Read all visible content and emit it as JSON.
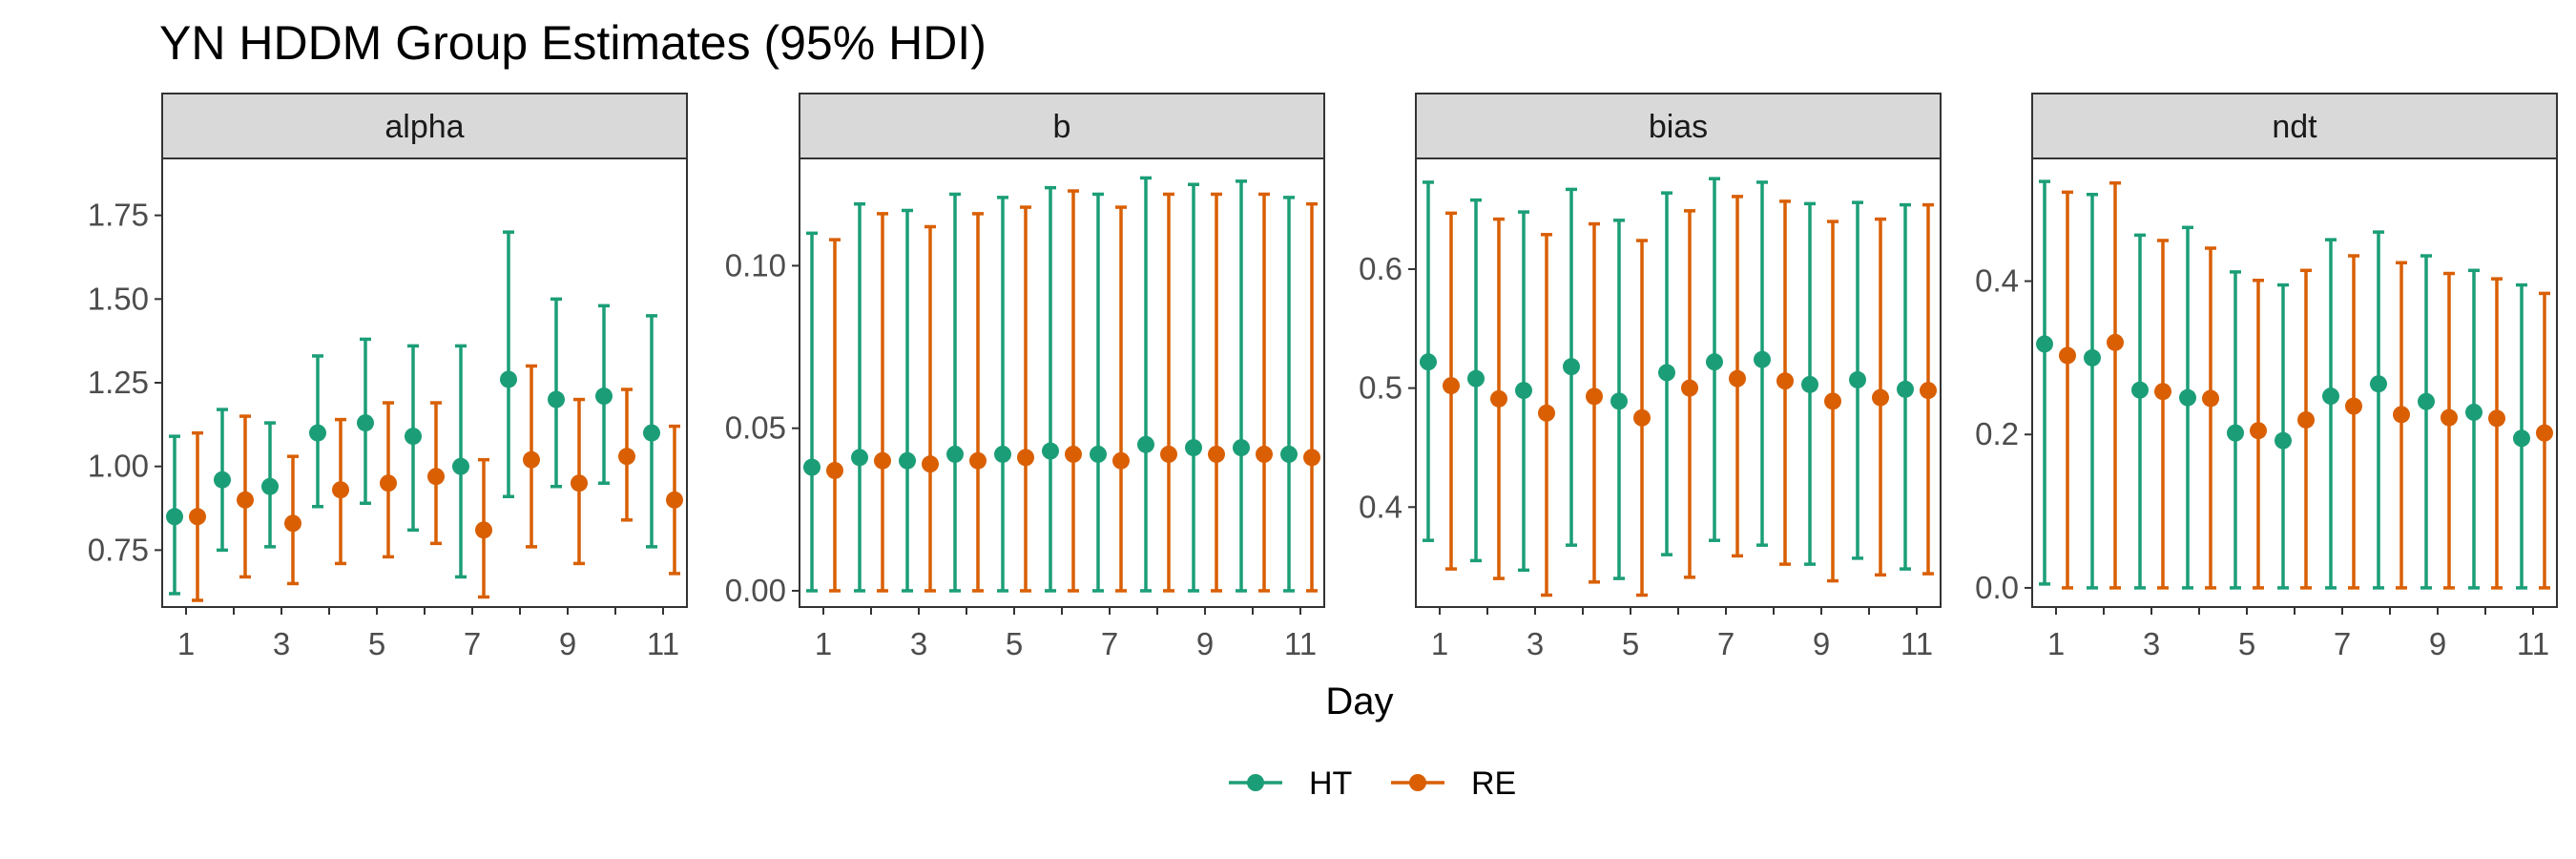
{
  "chart_data": {
    "type": "scatter",
    "title": "YN HDDM Group Estimates (95% HDI)",
    "xlabel": "Day",
    "ylabel": "",
    "x": [
      1,
      2,
      3,
      4,
      5,
      6,
      7,
      8,
      9,
      10,
      11
    ],
    "x_tick_labels": [
      "1",
      "3",
      "5",
      "7",
      "9",
      "11"
    ],
    "legend_position": "bottom",
    "colors": {
      "HT": "#1b9e77",
      "RE": "#d95f02"
    },
    "series_names": [
      "HT",
      "RE"
    ],
    "panels": [
      {
        "name": "alpha",
        "ylim": [
          0.58,
          1.92
        ],
        "yticks": [
          0.75,
          1.0,
          1.25,
          1.5,
          1.75
        ],
        "ytick_labels": [
          "0.75",
          "1.00",
          "1.25",
          "1.50",
          "1.75"
        ],
        "series": [
          {
            "name": "HT",
            "mean": [
              0.85,
              0.96,
              0.94,
              1.1,
              1.13,
              1.09,
              1.0,
              1.26,
              1.2,
              1.21,
              1.1
            ],
            "lower": [
              0.62,
              0.75,
              0.76,
              0.88,
              0.89,
              0.81,
              0.67,
              0.91,
              0.94,
              0.95,
              0.76
            ],
            "upper": [
              1.09,
              1.17,
              1.13,
              1.33,
              1.38,
              1.36,
              1.36,
              1.7,
              1.5,
              1.48,
              1.45
            ]
          },
          {
            "name": "RE",
            "mean": [
              0.85,
              0.9,
              0.83,
              0.93,
              0.95,
              0.97,
              0.81,
              1.02,
              0.95,
              1.03,
              0.9
            ],
            "lower": [
              0.6,
              0.67,
              0.65,
              0.71,
              0.73,
              0.77,
              0.61,
              0.76,
              0.71,
              0.84,
              0.68
            ],
            "upper": [
              1.1,
              1.15,
              1.03,
              1.14,
              1.19,
              1.19,
              1.02,
              1.3,
              1.2,
              1.23,
              1.12
            ]
          }
        ]
      },
      {
        "name": "b",
        "ylim": [
          -0.005,
          0.133
        ],
        "yticks": [
          0.0,
          0.05,
          0.1
        ],
        "ytick_labels": [
          "0.00",
          "0.05",
          "0.10"
        ],
        "series": [
          {
            "name": "HT",
            "mean": [
              0.038,
              0.041,
              0.04,
              0.042,
              0.042,
              0.043,
              0.042,
              0.045,
              0.044,
              0.044,
              0.042
            ],
            "lower": [
              0,
              0,
              0,
              0,
              0,
              0,
              0,
              0,
              0,
              0,
              0
            ],
            "upper": [
              0.11,
              0.119,
              0.117,
              0.122,
              0.121,
              0.124,
              0.122,
              0.127,
              0.125,
              0.126,
              0.121
            ]
          },
          {
            "name": "RE",
            "mean": [
              0.037,
              0.04,
              0.039,
              0.04,
              0.041,
              0.042,
              0.04,
              0.042,
              0.042,
              0.042,
              0.041
            ],
            "lower": [
              0,
              0,
              0,
              0,
              0,
              0,
              0,
              0,
              0,
              0,
              0
            ],
            "upper": [
              0.108,
              0.116,
              0.112,
              0.116,
              0.118,
              0.123,
              0.118,
              0.122,
              0.122,
              0.122,
              0.119
            ]
          }
        ]
      },
      {
        "name": "bias",
        "ylim": [
          0.316,
          0.693
        ],
        "yticks": [
          0.4,
          0.5,
          0.6
        ],
        "ytick_labels": [
          "0.4",
          "0.5",
          "0.6"
        ],
        "series": [
          {
            "name": "HT",
            "mean": [
              0.522,
              0.508,
              0.498,
              0.518,
              0.489,
              0.513,
              0.522,
              0.524,
              0.503,
              0.507,
              0.499
            ],
            "lower": [
              0.372,
              0.355,
              0.347,
              0.368,
              0.34,
              0.36,
              0.372,
              0.368,
              0.352,
              0.357,
              0.348
            ],
            "upper": [
              0.673,
              0.658,
              0.648,
              0.667,
              0.641,
              0.664,
              0.676,
              0.673,
              0.655,
              0.656,
              0.654
            ]
          },
          {
            "name": "RE",
            "mean": [
              0.502,
              0.491,
              0.479,
              0.493,
              0.475,
              0.5,
              0.508,
              0.506,
              0.489,
              0.492,
              0.498
            ],
            "lower": [
              0.348,
              0.34,
              0.326,
              0.337,
              0.326,
              0.341,
              0.359,
              0.352,
              0.338,
              0.343,
              0.344
            ],
            "upper": [
              0.647,
              0.642,
              0.629,
              0.638,
              0.624,
              0.649,
              0.661,
              0.657,
              0.64,
              0.642,
              0.654
            ]
          }
        ]
      },
      {
        "name": "ndt",
        "ylim": [
          -0.025,
          0.56
        ],
        "yticks": [
          0.0,
          0.2,
          0.4
        ],
        "ytick_labels": [
          "0.0",
          "0.2",
          "0.4"
        ],
        "series": [
          {
            "name": "HT",
            "mean": [
              0.318,
              0.3,
              0.258,
              0.248,
              0.202,
              0.192,
              0.25,
              0.266,
              0.243,
              0.229,
              0.195
            ],
            "lower": [
              0.005,
              0,
              0,
              0,
              0,
              0,
              0,
              0,
              0,
              0,
              0
            ],
            "upper": [
              0.53,
              0.513,
              0.46,
              0.47,
              0.412,
              0.395,
              0.454,
              0.464,
              0.433,
              0.414,
              0.395
            ]
          },
          {
            "name": "RE",
            "mean": [
              0.303,
              0.32,
              0.256,
              0.247,
              0.205,
              0.219,
              0.237,
              0.226,
              0.222,
              0.221,
              0.202
            ],
            "lower": [
              0,
              0,
              0,
              0,
              0,
              0,
              0,
              0,
              0,
              0,
              0
            ],
            "upper": [
              0.516,
              0.528,
              0.453,
              0.443,
              0.401,
              0.414,
              0.433,
              0.424,
              0.41,
              0.403,
              0.384
            ]
          }
        ]
      }
    ]
  }
}
